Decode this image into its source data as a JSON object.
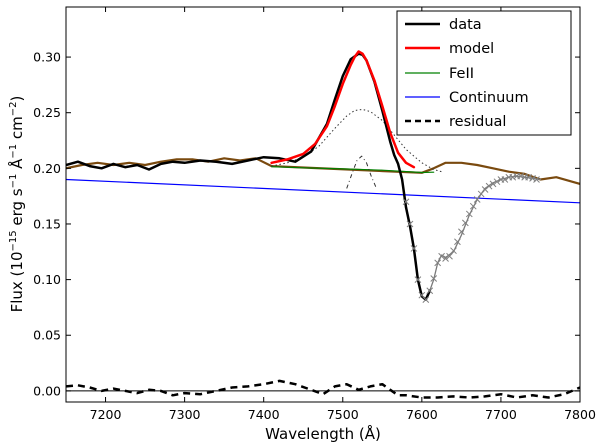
{
  "chart_data": {
    "type": "line",
    "title": "",
    "xlabel": "Wavelength (Å)",
    "ylabel_parts": {
      "prefix": "Flux (10",
      "exp1": "−15",
      "mid": " erg s",
      "exp2": "−1",
      "mid2": " Å",
      "exp3": "−1",
      "mid3": " cm",
      "exp4": "−2",
      "suffix": ")"
    },
    "xlim": [
      7150,
      7800
    ],
    "ylim": [
      -0.01,
      0.345
    ],
    "xticks": [
      7200,
      7300,
      7400,
      7500,
      7600,
      7700,
      7800
    ],
    "xtick_labels": [
      "7200",
      "7300",
      "7400",
      "7500",
      "7600",
      "7700",
      "7800"
    ],
    "yticks": [
      0.0,
      0.05,
      0.1,
      0.15,
      0.2,
      0.25,
      0.3
    ],
    "ytick_labels": [
      "0.00",
      "0.05",
      "0.10",
      "0.15",
      "0.20",
      "0.25",
      "0.30"
    ],
    "zero_line": 0,
    "legend": {
      "position": "top-right",
      "entries": [
        {
          "label": "data",
          "color": "#000000",
          "style": "solid",
          "width": 2.5
        },
        {
          "label": "model",
          "color": "#ff0000",
          "style": "solid",
          "width": 2.5
        },
        {
          "label": "FeII",
          "color": "#008000",
          "style": "solid",
          "width": 1.3
        },
        {
          "label": "Continuum",
          "color": "#0000ff",
          "style": "solid",
          "width": 1.3
        },
        {
          "label": "residual",
          "color": "#000000",
          "style": "dashed",
          "width": 2.5
        }
      ]
    },
    "series": [
      {
        "name": "data",
        "color": "#000000",
        "width": 2.5,
        "dash": "",
        "x": [
          7150,
          7165,
          7180,
          7195,
          7210,
          7225,
          7240,
          7255,
          7270,
          7285,
          7300,
          7320,
          7340,
          7360,
          7380,
          7400,
          7420,
          7440,
          7460,
          7480,
          7490,
          7500,
          7510,
          7520,
          7525,
          7530,
          7540,
          7550,
          7560,
          7565,
          7570,
          7575,
          7580,
          7585,
          7590,
          7595,
          7600,
          7605,
          7610
        ],
        "y": [
          0.203,
          0.206,
          0.202,
          0.2,
          0.204,
          0.201,
          0.203,
          0.199,
          0.204,
          0.206,
          0.205,
          0.207,
          0.206,
          0.204,
          0.207,
          0.21,
          0.209,
          0.206,
          0.215,
          0.24,
          0.262,
          0.283,
          0.298,
          0.303,
          0.302,
          0.297,
          0.278,
          0.252,
          0.224,
          0.212,
          0.204,
          0.19,
          0.165,
          0.148,
          0.128,
          0.1,
          0.085,
          0.082,
          0.09
        ]
      },
      {
        "name": "model",
        "color": "#ff0000",
        "width": 2.5,
        "dash": "",
        "x": [
          7410,
          7430,
          7450,
          7465,
          7480,
          7490,
          7500,
          7510,
          7515,
          7520,
          7525,
          7530,
          7540,
          7550,
          7560,
          7570,
          7580,
          7590
        ],
        "y": [
          0.205,
          0.208,
          0.213,
          0.222,
          0.238,
          0.256,
          0.276,
          0.293,
          0.3,
          0.305,
          0.303,
          0.297,
          0.279,
          0.256,
          0.232,
          0.214,
          0.205,
          0.201
        ]
      },
      {
        "name": "FeII",
        "color": "#008000",
        "width": 1.2,
        "dash": "",
        "x": [
          7410,
          7450,
          7500,
          7550,
          7600,
          7615
        ],
        "y": [
          0.2015,
          0.2005,
          0.1995,
          0.1983,
          0.1963,
          0.1965
        ]
      },
      {
        "name": "Continuum",
        "color": "#0000ff",
        "width": 1.2,
        "dash": "",
        "x": [
          7150,
          7800
        ],
        "y": [
          0.19,
          0.169
        ]
      },
      {
        "name": "data_alt_brown",
        "color": "#7a4a0f",
        "width": 2.2,
        "dash": "",
        "x": [
          7150,
          7170,
          7190,
          7210,
          7230,
          7250,
          7270,
          7290,
          7310,
          7330,
          7350,
          7370,
          7390,
          7410,
          7600,
          7615,
          7630,
          7650,
          7670,
          7690,
          7710,
          7730,
          7750,
          7770,
          7790,
          7800
        ],
        "y": [
          0.2,
          0.203,
          0.205,
          0.203,
          0.205,
          0.203,
          0.206,
          0.208,
          0.208,
          0.206,
          0.209,
          0.207,
          0.209,
          0.202,
          0.196,
          0.2,
          0.205,
          0.205,
          0.203,
          0.2,
          0.197,
          0.195,
          0.19,
          0.192,
          0.188,
          0.186
        ]
      },
      {
        "name": "broad_component",
        "color": "#333333",
        "width": 1.0,
        "dash": "1.5,2.5",
        "x": [
          7410,
          7430,
          7450,
          7470,
          7490,
          7505,
          7515,
          7525,
          7535,
          7550,
          7565,
          7580,
          7600,
          7615,
          7625
        ],
        "y": [
          0.202,
          0.205,
          0.21,
          0.22,
          0.236,
          0.247,
          0.252,
          0.253,
          0.251,
          0.243,
          0.23,
          0.217,
          0.205,
          0.199,
          0.197
        ]
      },
      {
        "name": "narrow_component",
        "color": "#333333",
        "width": 1.0,
        "dash": "4,3,1,3",
        "x": [
          7505,
          7512,
          7518,
          7524,
          7530,
          7536,
          7542
        ],
        "y": [
          0.182,
          0.196,
          0.207,
          0.211,
          0.205,
          0.193,
          0.183
        ]
      },
      {
        "name": "absorption_tail",
        "color": "#7a7a7a",
        "width": 1.3,
        "dash": "",
        "x": [
          7605,
          7610,
          7615,
          7620,
          7625,
          7630,
          7640,
          7650,
          7660,
          7670,
          7680,
          7690,
          7700,
          7710,
          7720,
          7730,
          7740,
          7750
        ],
        "y": [
          0.082,
          0.09,
          0.1,
          0.115,
          0.122,
          0.12,
          0.125,
          0.14,
          0.158,
          0.172,
          0.182,
          0.187,
          0.19,
          0.192,
          0.193,
          0.192,
          0.191,
          0.19
        ]
      },
      {
        "name": "residual",
        "color": "#000000",
        "width": 2.5,
        "dash": "7,5",
        "x": [
          7150,
          7165,
          7180,
          7195,
          7210,
          7225,
          7240,
          7255,
          7270,
          7285,
          7300,
          7320,
          7340,
          7360,
          7380,
          7400,
          7420,
          7440,
          7460,
          7475,
          7490,
          7505,
          7520,
          7535,
          7550,
          7560,
          7570,
          7580,
          7600,
          7620,
          7640,
          7660,
          7680,
          7700,
          7720,
          7740,
          7760,
          7780,
          7800
        ],
        "y": [
          0.004,
          0.005,
          0.003,
          0.0,
          0.002,
          0.0,
          -0.002,
          0.001,
          0.0,
          -0.004,
          -0.002,
          -0.003,
          0.0,
          0.003,
          0.004,
          0.006,
          0.009,
          0.006,
          0.001,
          -0.003,
          0.004,
          0.006,
          0.001,
          0.004,
          0.006,
          0.001,
          -0.004,
          -0.004,
          -0.006,
          -0.006,
          -0.005,
          -0.006,
          -0.005,
          -0.003,
          -0.006,
          -0.004,
          -0.006,
          -0.003,
          0.003
        ]
      }
    ],
    "marker_series": {
      "name": "absorption_points",
      "color": "#808080",
      "marker": "x",
      "x": [
        7580,
        7585,
        7590,
        7595,
        7600,
        7605,
        7610,
        7615,
        7620,
        7625,
        7630,
        7635,
        7640,
        7645,
        7650,
        7655,
        7660,
        7665,
        7670,
        7675,
        7680,
        7685,
        7690,
        7695,
        7700,
        7705,
        7710,
        7715,
        7720,
        7725,
        7730,
        7735,
        7740,
        7745
      ],
      "y": [
        0.17,
        0.15,
        0.128,
        0.1,
        0.086,
        0.082,
        0.09,
        0.101,
        0.115,
        0.121,
        0.119,
        0.121,
        0.126,
        0.134,
        0.143,
        0.151,
        0.159,
        0.166,
        0.172,
        0.177,
        0.181,
        0.184,
        0.186,
        0.188,
        0.19,
        0.19,
        0.192,
        0.192,
        0.193,
        0.193,
        0.192,
        0.192,
        0.191,
        0.19
      ]
    }
  }
}
